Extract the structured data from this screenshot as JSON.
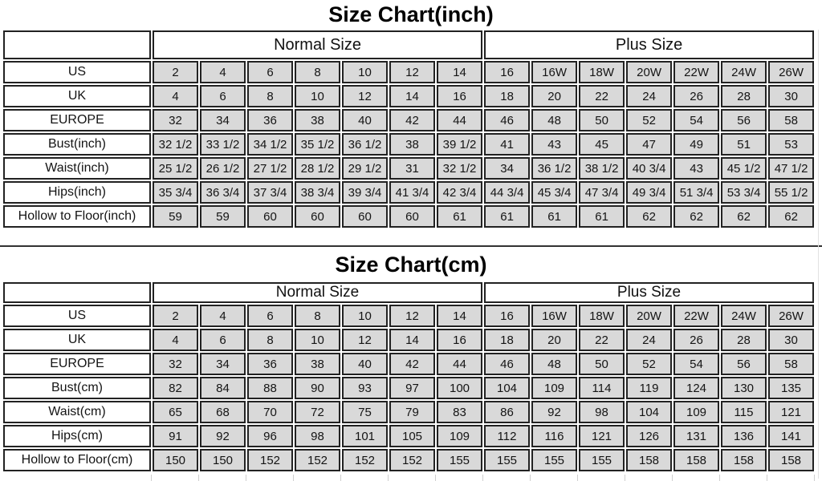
{
  "colors": {
    "cell_bg": "#d9d9d9",
    "border": "#222222",
    "background": "#ffffff",
    "text": "#141414"
  },
  "charts": [
    {
      "title": "Size Chart(inch)",
      "header": {
        "normal": "Normal Size",
        "plus": "Plus Size"
      },
      "rows": [
        {
          "label": "US",
          "normal": [
            "2",
            "4",
            "6",
            "8",
            "10",
            "12",
            "14"
          ],
          "plus": [
            "16",
            "16W",
            "18W",
            "20W",
            "22W",
            "24W",
            "26W"
          ]
        },
        {
          "label": "UK",
          "normal": [
            "4",
            "6",
            "8",
            "10",
            "12",
            "14",
            "16"
          ],
          "plus": [
            "18",
            "20",
            "22",
            "24",
            "26",
            "28",
            "30"
          ]
        },
        {
          "label": "EUROPE",
          "normal": [
            "32",
            "34",
            "36",
            "38",
            "40",
            "42",
            "44"
          ],
          "plus": [
            "46",
            "48",
            "50",
            "52",
            "54",
            "56",
            "58"
          ]
        },
        {
          "label": "Bust(inch)",
          "normal": [
            "32 1/2",
            "33 1/2",
            "34 1/2",
            "35 1/2",
            "36 1/2",
            "38",
            "39 1/2"
          ],
          "plus": [
            "41",
            "43",
            "45",
            "47",
            "49",
            "51",
            "53"
          ]
        },
        {
          "label": "Waist(inch)",
          "normal": [
            "25 1/2",
            "26 1/2",
            "27 1/2",
            "28 1/2",
            "29 1/2",
            "31",
            "32 1/2"
          ],
          "plus": [
            "34",
            "36 1/2",
            "38 1/2",
            "40 3/4",
            "43",
            "45 1/2",
            "47 1/2"
          ]
        },
        {
          "label": "Hips(inch)",
          "normal": [
            "35 3/4",
            "36 3/4",
            "37 3/4",
            "38 3/4",
            "39 3/4",
            "41 3/4",
            "42 3/4"
          ],
          "plus": [
            "44 3/4",
            "45 3/4",
            "47 3/4",
            "49 3/4",
            "51 3/4",
            "53 3/4",
            "55 1/2"
          ]
        },
        {
          "label": "Hollow to Floor(inch)",
          "normal": [
            "59",
            "59",
            "60",
            "60",
            "60",
            "60",
            "61"
          ],
          "plus": [
            "61",
            "61",
            "61",
            "62",
            "62",
            "62",
            "62"
          ]
        }
      ]
    },
    {
      "title": "Size Chart(cm)",
      "header": {
        "normal": "Normal Size",
        "plus": "Plus Size"
      },
      "rows": [
        {
          "label": "US",
          "normal": [
            "2",
            "4",
            "6",
            "8",
            "10",
            "12",
            "14"
          ],
          "plus": [
            "16",
            "16W",
            "18W",
            "20W",
            "22W",
            "24W",
            "26W"
          ]
        },
        {
          "label": "UK",
          "normal": [
            "4",
            "6",
            "8",
            "10",
            "12",
            "14",
            "16"
          ],
          "plus": [
            "18",
            "20",
            "22",
            "24",
            "26",
            "28",
            "30"
          ]
        },
        {
          "label": "EUROPE",
          "normal": [
            "32",
            "34",
            "36",
            "38",
            "40",
            "42",
            "44"
          ],
          "plus": [
            "46",
            "48",
            "50",
            "52",
            "54",
            "56",
            "58"
          ]
        },
        {
          "label": "Bust(cm)",
          "normal": [
            "82",
            "84",
            "88",
            "90",
            "93",
            "97",
            "100"
          ],
          "plus": [
            "104",
            "109",
            "114",
            "119",
            "124",
            "130",
            "135"
          ]
        },
        {
          "label": "Waist(cm)",
          "normal": [
            "65",
            "68",
            "70",
            "72",
            "75",
            "79",
            "83"
          ],
          "plus": [
            "86",
            "92",
            "98",
            "104",
            "109",
            "115",
            "121"
          ]
        },
        {
          "label": "Hips(cm)",
          "normal": [
            "91",
            "92",
            "96",
            "98",
            "101",
            "105",
            "109"
          ],
          "plus": [
            "112",
            "116",
            "121",
            "126",
            "131",
            "136",
            "141"
          ]
        },
        {
          "label": "Hollow to Floor(cm)",
          "normal": [
            "150",
            "150",
            "152",
            "152",
            "152",
            "152",
            "155"
          ],
          "plus": [
            "155",
            "155",
            "155",
            "158",
            "158",
            "158",
            "158"
          ]
        }
      ]
    }
  ]
}
